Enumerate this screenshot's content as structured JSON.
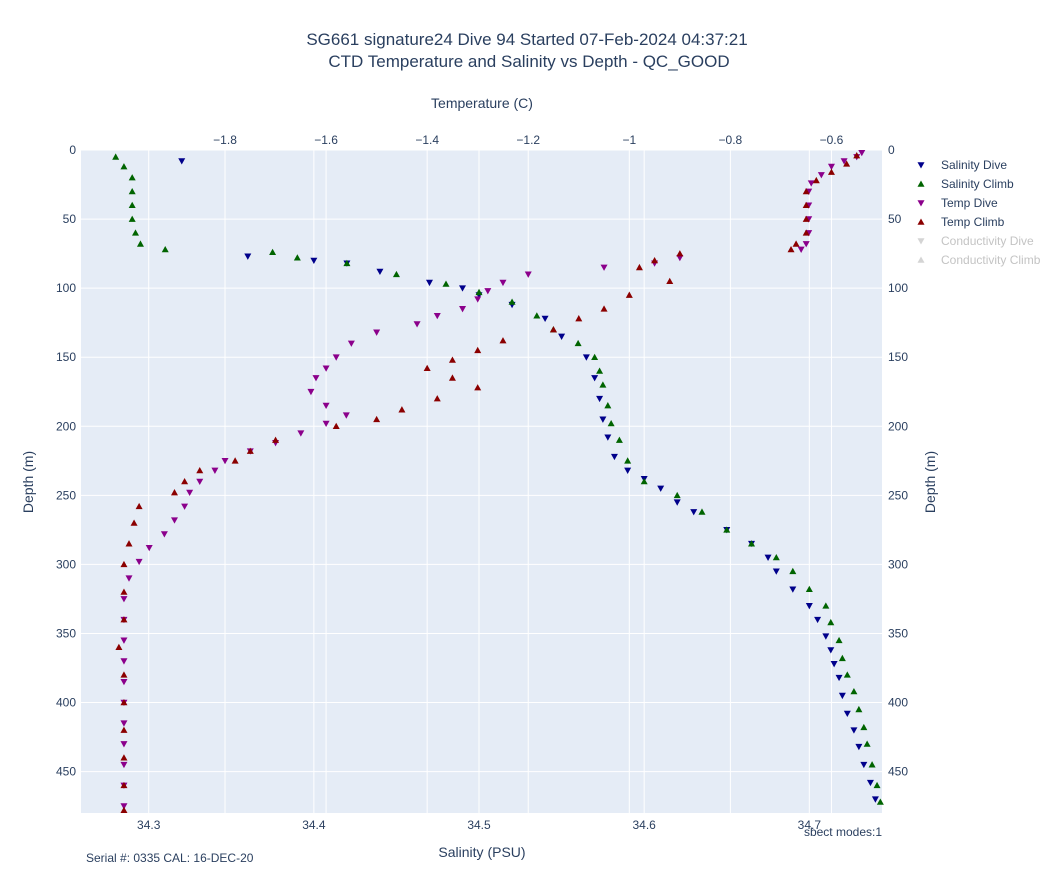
{
  "chart_data": {
    "type": "scatter",
    "title": "SG661 signature24 Dive 94 Started 07-Feb-2024 04:37:21",
    "subtitle": "CTD Temperature and Salinity vs Depth - QC_GOOD",
    "xlabel_bottom": "Salinity (PSU)",
    "xlabel_top": "Temperature (C)",
    "ylabel_left": "Depth (m)",
    "ylabel_right": "Depth (m)",
    "x_bottom_range": [
      34.259,
      34.744
    ],
    "x_top_range": [
      -2.085,
      -0.5
    ],
    "y_range": [
      0,
      480
    ],
    "y_reversed": true,
    "x_bottom_ticks": [
      "34.3",
      "34.4",
      "34.5",
      "34.6",
      "34.7"
    ],
    "x_bottom_tick_values": [
      34.3,
      34.4,
      34.5,
      34.6,
      34.7
    ],
    "x_top_ticks": [
      "−1.8",
      "−1.6",
      "−1.4",
      "−1.2",
      "−1",
      "−0.8",
      "−0.6"
    ],
    "x_top_tick_values": [
      -1.8,
      -1.6,
      -1.4,
      -1.2,
      -1.0,
      -0.8,
      -0.6
    ],
    "y_ticks": [
      "0",
      "50",
      "100",
      "150",
      "200",
      "250",
      "300",
      "350",
      "400",
      "450"
    ],
    "y_tick_values": [
      0,
      50,
      100,
      150,
      200,
      250,
      300,
      350,
      400,
      450
    ],
    "grid": true,
    "legend_position": "top-right",
    "annotations": {
      "serial": "Serial #: 0335  CAL: 16-DEC-20",
      "modes": "sbect modes:1"
    },
    "colors": {
      "plot_bg": "#e5ecf6",
      "grid": "#ffffff",
      "salinity_dive": "#00008b",
      "salinity_climb": "#006400",
      "temp_dive": "#8b008b",
      "temp_climb": "#8b0000",
      "hidden": "#aaaaaa",
      "text": "#2a3f5f"
    },
    "series": [
      {
        "name": "Salinity Dive",
        "axis": "salinity",
        "marker": "triangle-down",
        "points": [
          [
            34.32,
            8
          ],
          [
            34.36,
            77
          ],
          [
            34.4,
            80
          ],
          [
            34.42,
            82
          ],
          [
            34.44,
            88
          ],
          [
            34.47,
            96
          ],
          [
            34.49,
            100
          ],
          [
            34.5,
            105
          ],
          [
            34.52,
            112
          ],
          [
            34.54,
            122
          ],
          [
            34.55,
            135
          ],
          [
            34.565,
            150
          ],
          [
            34.57,
            165
          ],
          [
            34.573,
            180
          ],
          [
            34.575,
            195
          ],
          [
            34.578,
            208
          ],
          [
            34.582,
            222
          ],
          [
            34.59,
            232
          ],
          [
            34.6,
            238
          ],
          [
            34.61,
            245
          ],
          [
            34.62,
            255
          ],
          [
            34.63,
            262
          ],
          [
            34.65,
            275
          ],
          [
            34.665,
            285
          ],
          [
            34.675,
            295
          ],
          [
            34.68,
            305
          ],
          [
            34.69,
            318
          ],
          [
            34.7,
            330
          ],
          [
            34.705,
            340
          ],
          [
            34.71,
            352
          ],
          [
            34.713,
            362
          ],
          [
            34.715,
            372
          ],
          [
            34.718,
            382
          ],
          [
            34.72,
            395
          ],
          [
            34.723,
            408
          ],
          [
            34.727,
            420
          ],
          [
            34.73,
            432
          ],
          [
            34.733,
            445
          ],
          [
            34.737,
            458
          ],
          [
            34.74,
            470
          ]
        ]
      },
      {
        "name": "Salinity Climb",
        "axis": "salinity",
        "marker": "triangle-up",
        "points": [
          [
            34.28,
            5
          ],
          [
            34.285,
            12
          ],
          [
            34.29,
            20
          ],
          [
            34.29,
            30
          ],
          [
            34.29,
            40
          ],
          [
            34.29,
            50
          ],
          [
            34.292,
            60
          ],
          [
            34.295,
            68
          ],
          [
            34.31,
            72
          ],
          [
            34.375,
            74
          ],
          [
            34.39,
            78
          ],
          [
            34.42,
            82
          ],
          [
            34.45,
            90
          ],
          [
            34.48,
            97
          ],
          [
            34.5,
            103
          ],
          [
            34.52,
            110
          ],
          [
            34.535,
            120
          ],
          [
            34.545,
            130
          ],
          [
            34.56,
            140
          ],
          [
            34.57,
            150
          ],
          [
            34.573,
            160
          ],
          [
            34.575,
            170
          ],
          [
            34.578,
            185
          ],
          [
            34.58,
            198
          ],
          [
            34.585,
            210
          ],
          [
            34.59,
            225
          ],
          [
            34.6,
            240
          ],
          [
            34.62,
            250
          ],
          [
            34.635,
            262
          ],
          [
            34.65,
            275
          ],
          [
            34.665,
            285
          ],
          [
            34.68,
            295
          ],
          [
            34.69,
            305
          ],
          [
            34.7,
            318
          ],
          [
            34.71,
            330
          ],
          [
            34.713,
            342
          ],
          [
            34.718,
            355
          ],
          [
            34.72,
            368
          ],
          [
            34.723,
            380
          ],
          [
            34.727,
            392
          ],
          [
            34.73,
            405
          ],
          [
            34.733,
            418
          ],
          [
            34.735,
            430
          ],
          [
            34.738,
            445
          ],
          [
            34.741,
            460
          ],
          [
            34.743,
            472
          ]
        ]
      },
      {
        "name": "Temp Dive",
        "axis": "temperature",
        "marker": "triangle-down",
        "points": [
          [
            -0.54,
            2
          ],
          [
            -0.55,
            5
          ],
          [
            -0.575,
            8
          ],
          [
            -0.6,
            12
          ],
          [
            -0.62,
            18
          ],
          [
            -0.64,
            24
          ],
          [
            -0.645,
            30
          ],
          [
            -0.645,
            40
          ],
          [
            -0.645,
            50
          ],
          [
            -0.645,
            60
          ],
          [
            -0.65,
            68
          ],
          [
            -0.66,
            72
          ],
          [
            -0.9,
            78
          ],
          [
            -0.95,
            82
          ],
          [
            -1.05,
            85
          ],
          [
            -1.2,
            90
          ],
          [
            -1.25,
            96
          ],
          [
            -1.28,
            102
          ],
          [
            -1.3,
            108
          ],
          [
            -1.33,
            115
          ],
          [
            -1.38,
            120
          ],
          [
            -1.42,
            126
          ],
          [
            -1.5,
            132
          ],
          [
            -1.55,
            140
          ],
          [
            -1.58,
            150
          ],
          [
            -1.6,
            158
          ],
          [
            -1.62,
            165
          ],
          [
            -1.63,
            175
          ],
          [
            -1.6,
            185
          ],
          [
            -1.56,
            192
          ],
          [
            -1.6,
            198
          ],
          [
            -1.65,
            205
          ],
          [
            -1.7,
            212
          ],
          [
            -1.75,
            218
          ],
          [
            -1.8,
            225
          ],
          [
            -1.82,
            232
          ],
          [
            -1.85,
            240
          ],
          [
            -1.87,
            248
          ],
          [
            -1.88,
            258
          ],
          [
            -1.9,
            268
          ],
          [
            -1.92,
            278
          ],
          [
            -1.95,
            288
          ],
          [
            -1.97,
            298
          ],
          [
            -1.99,
            310
          ],
          [
            -2.0,
            325
          ],
          [
            -2.0,
            340
          ],
          [
            -2.0,
            355
          ],
          [
            -2.0,
            370
          ],
          [
            -2.0,
            385
          ],
          [
            -2.0,
            400
          ],
          [
            -2.0,
            415
          ],
          [
            -2.0,
            430
          ],
          [
            -2.0,
            445
          ],
          [
            -2.0,
            460
          ],
          [
            -2.0,
            475
          ]
        ]
      },
      {
        "name": "Temp Climb",
        "axis": "temperature",
        "marker": "triangle-up",
        "points": [
          [
            -0.55,
            4
          ],
          [
            -0.57,
            10
          ],
          [
            -0.6,
            16
          ],
          [
            -0.63,
            22
          ],
          [
            -0.65,
            30
          ],
          [
            -0.65,
            40
          ],
          [
            -0.65,
            50
          ],
          [
            -0.65,
            60
          ],
          [
            -0.67,
            68
          ],
          [
            -0.68,
            72
          ],
          [
            -0.9,
            75
          ],
          [
            -0.95,
            80
          ],
          [
            -0.98,
            85
          ],
          [
            -0.92,
            95
          ],
          [
            -1.0,
            105
          ],
          [
            -1.05,
            115
          ],
          [
            -1.1,
            122
          ],
          [
            -1.15,
            130
          ],
          [
            -1.25,
            138
          ],
          [
            -1.3,
            145
          ],
          [
            -1.35,
            152
          ],
          [
            -1.4,
            158
          ],
          [
            -1.35,
            165
          ],
          [
            -1.3,
            172
          ],
          [
            -1.38,
            180
          ],
          [
            -1.45,
            188
          ],
          [
            -1.5,
            195
          ],
          [
            -1.58,
            200
          ],
          [
            -1.7,
            210
          ],
          [
            -1.75,
            218
          ],
          [
            -1.78,
            225
          ],
          [
            -1.85,
            232
          ],
          [
            -1.88,
            240
          ],
          [
            -1.9,
            248
          ],
          [
            -1.97,
            258
          ],
          [
            -1.98,
            270
          ],
          [
            -1.99,
            285
          ],
          [
            -2.0,
            300
          ],
          [
            -2.0,
            320
          ],
          [
            -2.0,
            340
          ],
          [
            -2.01,
            360
          ],
          [
            -2.0,
            380
          ],
          [
            -2.0,
            400
          ],
          [
            -2.0,
            420
          ],
          [
            -2.0,
            440
          ],
          [
            -2.0,
            460
          ],
          [
            -2.0,
            478
          ]
        ]
      },
      {
        "name": "Conductivity Dive",
        "axis": "none",
        "marker": "triangle-down",
        "hidden": true,
        "points": []
      },
      {
        "name": "Conductivity Climb",
        "axis": "none",
        "marker": "triangle-up",
        "hidden": true,
        "points": []
      }
    ]
  }
}
